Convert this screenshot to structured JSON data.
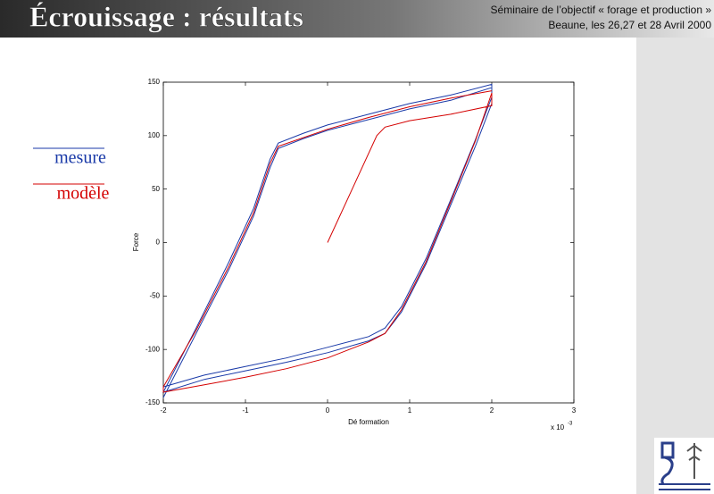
{
  "header": {
    "title": "Écrouissage  : résultats",
    "subtitle_lines": [
      "Séminaire de l’objectif « forage et production »",
      "Beaune, les 26,27 et 28 Avril 2000"
    ]
  },
  "chart_data": {
    "type": "line",
    "x_label": "Dé formation",
    "y_label": "Force",
    "x_multiplier": "x 10",
    "x_multiplier_exponent": "-3",
    "xlim": [
      -2,
      3
    ],
    "xticks": [
      -2,
      -1,
      0,
      1,
      2,
      3
    ],
    "ylim": [
      -150,
      150
    ],
    "yticks": [
      -150,
      -100,
      -50,
      0,
      50,
      100,
      150
    ],
    "series": [
      {
        "name": "mesure",
        "color": "#1a3aa8",
        "x": [
          -2,
          -1.6,
          -1.2,
          -0.9,
          -0.7,
          -0.6,
          -0.3,
          0,
          0.5,
          1,
          1.5,
          2,
          2,
          1.8,
          1.5,
          1.2,
          0.9,
          0.7,
          0.5,
          0,
          -0.5,
          -1,
          -1.5,
          -2,
          -1.6,
          -1.2,
          -0.9,
          -0.7,
          -0.6,
          -0.3,
          0,
          0.5,
          1,
          1.5,
          2,
          2,
          1.8,
          1.5,
          1.2,
          0.9,
          0.7,
          0.5,
          0,
          -0.5,
          -1,
          -1.5,
          -2
        ],
        "values": [
          -145,
          -85,
          -25,
          25,
          70,
          88,
          97,
          105,
          115,
          125,
          133,
          145,
          130,
          90,
          35,
          -20,
          -65,
          -85,
          -92,
          -103,
          -112,
          -120,
          -128,
          -140,
          -80,
          -18,
          32,
          78,
          93,
          102,
          110,
          120,
          130,
          138,
          148,
          136,
          96,
          40,
          -15,
          -60,
          -80,
          -88,
          -98,
          -108,
          -116,
          -124,
          -135
        ]
      },
      {
        "name": "modèle",
        "color": "#d40000",
        "x": [
          0,
          0.3,
          0.6,
          0.7,
          1,
          1.5,
          2,
          2,
          1.8,
          1.5,
          1.2,
          0.9,
          0.7,
          0.5,
          0,
          -0.5,
          -1,
          -1.5,
          -2,
          -2,
          -1.6,
          -1.2,
          -0.9,
          -0.7,
          -0.6,
          0,
          0.5,
          1,
          1.5,
          2
        ],
        "values": [
          0,
          50,
          100,
          108,
          114,
          120,
          128,
          140,
          95,
          38,
          -18,
          -63,
          -85,
          -93,
          -108,
          -118,
          -126,
          -133,
          -140,
          -135,
          -82,
          -22,
          28,
          74,
          90,
          106,
          117,
          127,
          135,
          142
        ]
      }
    ]
  }
}
